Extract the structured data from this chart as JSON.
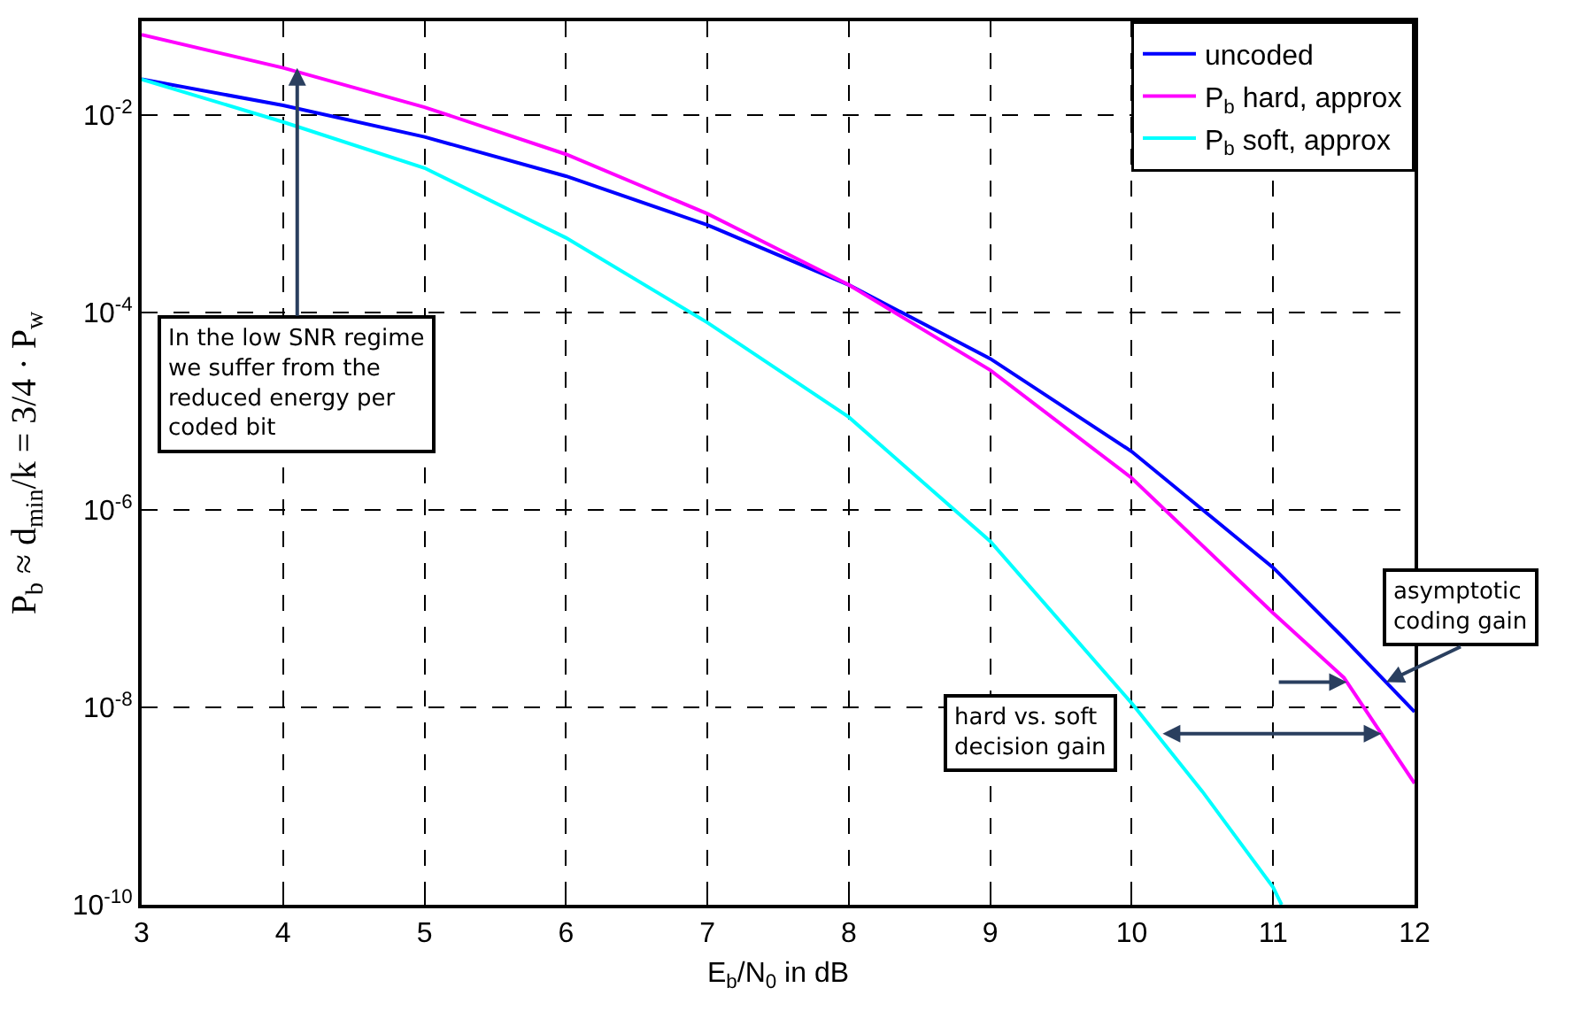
{
  "chart_data": {
    "type": "line",
    "xlabel": "E$_{b}$/N$_{0}$ in dB",
    "ylabel": "P$_{b}$ ≈ d$_{min}$/k = 3/4 · P$_{w}$",
    "x": [
      3,
      4,
      5,
      6,
      7,
      8,
      9,
      10,
      11,
      11.5,
      12
    ],
    "series": [
      {
        "name": "uncoded",
        "color": "#0000ff",
        "values": [
          0.023,
          0.0125,
          0.006,
          0.0024,
          0.00077,
          0.00019,
          3.4e-05,
          3.9e-06,
          2.6e-07,
          5e-08,
          9e-09
        ]
      },
      {
        "name": "P$_{b}$ hard, approx",
        "color": "#ff00ff",
        "values": [
          0.065,
          0.03,
          0.012,
          0.004,
          0.001,
          0.00019,
          2.6e-05,
          2.1e-06,
          9e-08,
          2e-08,
          1.7e-09
        ]
      },
      {
        "name": "P$_{b}$ soft, approx",
        "color": "#00ffff",
        "x": [
          3,
          4,
          5,
          6,
          7,
          8,
          9,
          10,
          10.5,
          11,
          11.06
        ],
        "values": [
          0.023,
          0.0085,
          0.0029,
          0.00057,
          7.9e-05,
          8.7e-06,
          4.8e-07,
          1.1e-08,
          1.4e-09,
          1.5e-10,
          1e-10
        ]
      }
    ],
    "annotations": [
      {
        "text": "In the low SNR regime\nwe suffer from the\nreduced energy per\ncoded bit",
        "x": 4.1,
        "y": 0.03
      },
      {
        "text": "hard vs. soft\ndecision gain",
        "x": 10.2,
        "y": 5.4e-09
      },
      {
        "text": "asymptotic\ncoding gain",
        "x": 11.8,
        "y": 1.8e-08
      }
    ],
    "log": "y",
    "xlim": [
      3,
      12
    ],
    "ylim": [
      1e-10,
      0.089
    ],
    "xticks": [
      3,
      4,
      5,
      6,
      7,
      8,
      9,
      10,
      11,
      12
    ],
    "yticks": [
      {
        "value": 1e-10,
        "label": "10$^{-10}$"
      },
      {
        "value": 1e-08,
        "label": "10$^{-8}$"
      },
      {
        "value": 1e-06,
        "label": "10$^{-6}$"
      },
      {
        "value": 0.0001,
        "label": "10$^{-4}$"
      },
      {
        "value": 0.01,
        "label": "10$^{-2}$"
      }
    ],
    "grid": true,
    "legend": "top right",
    "marker": "none",
    "line_style": "solid"
  }
}
